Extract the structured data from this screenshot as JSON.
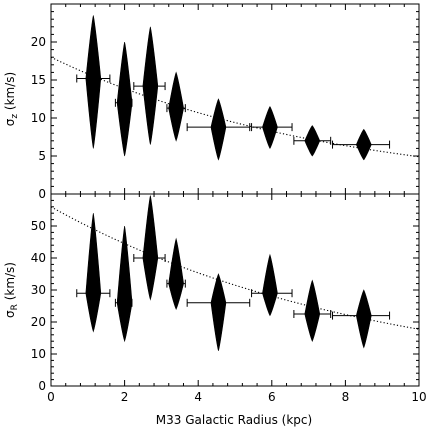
{
  "chart_data": [
    {
      "type": "scatter",
      "panel": "top",
      "ylabel_main": "σ",
      "ylabel_sub": "z",
      "ylabel_unit": " (km/s)",
      "xlim": [
        0,
        10
      ],
      "ylim": [
        0,
        25
      ],
      "yticks": [
        0,
        5,
        10,
        15,
        20
      ],
      "points": [
        {
          "x": 1.15,
          "y": 15.2,
          "xerr": [
            0.7,
            1.6
          ],
          "violin_lo": 6.0,
          "violin_hi": 23.5,
          "mode": 15.2
        },
        {
          "x": 2.0,
          "y": 12.0,
          "xerr": [
            1.75,
            2.2
          ],
          "violin_lo": 5.0,
          "violin_hi": 20.0,
          "mode": 12.0
        },
        {
          "x": 2.7,
          "y": 14.2,
          "xerr": [
            2.25,
            3.1
          ],
          "violin_lo": 6.5,
          "violin_hi": 22.0,
          "mode": 14.2
        },
        {
          "x": 3.4,
          "y": 11.3,
          "xerr": [
            3.15,
            3.65
          ],
          "violin_lo": 7.0,
          "violin_hi": 16.0,
          "mode": 11.3
        },
        {
          "x": 4.55,
          "y": 8.8,
          "xerr": [
            3.7,
            5.4
          ],
          "violin_lo": 4.5,
          "violin_hi": 12.5,
          "mode": 8.8
        },
        {
          "x": 5.95,
          "y": 8.8,
          "xerr": [
            5.45,
            6.55
          ],
          "violin_lo": 6.0,
          "violin_hi": 11.5,
          "mode": 8.8
        },
        {
          "x": 7.1,
          "y": 7.0,
          "xerr": [
            6.6,
            7.6
          ],
          "violin_lo": 5.0,
          "violin_hi": 9.0,
          "mode": 7.0
        },
        {
          "x": 8.5,
          "y": 6.5,
          "xerr": [
            7.65,
            9.2
          ],
          "violin_lo": 4.5,
          "violin_hi": 8.5,
          "mode": 6.5
        }
      ],
      "fit": {
        "style": "dotted",
        "a": 18.0,
        "b": 0.13
      }
    },
    {
      "type": "scatter",
      "panel": "bottom",
      "ylabel_main": "σ",
      "ylabel_sub": "R",
      "ylabel_unit": " (km/s)",
      "xlabel": "M33 Galactic Radius (kpc)",
      "xlim": [
        0,
        10
      ],
      "ylim": [
        0,
        60
      ],
      "yticks": [
        0,
        10,
        20,
        30,
        40,
        50
      ],
      "xticks": [
        0,
        2,
        4,
        6,
        8,
        10
      ],
      "points": [
        {
          "x": 1.15,
          "y": 29.0,
          "xerr": [
            0.7,
            1.6
          ],
          "violin_lo": 17.0,
          "violin_hi": 54.0,
          "mode": 29.0
        },
        {
          "x": 2.0,
          "y": 26.0,
          "xerr": [
            1.75,
            2.2
          ],
          "violin_lo": 14.0,
          "violin_hi": 50.0,
          "mode": 26.0
        },
        {
          "x": 2.7,
          "y": 40.0,
          "xerr": [
            2.25,
            3.1
          ],
          "violin_lo": 27.0,
          "violin_hi": 59.5,
          "mode": 40.0
        },
        {
          "x": 3.4,
          "y": 32.0,
          "xerr": [
            3.15,
            3.65
          ],
          "violin_lo": 24.0,
          "violin_hi": 46.0,
          "mode": 32.0
        },
        {
          "x": 4.55,
          "y": 26.0,
          "xerr": [
            3.7,
            5.4
          ],
          "violin_lo": 11.0,
          "violin_hi": 35.0,
          "mode": 26.0
        },
        {
          "x": 5.95,
          "y": 29.0,
          "xerr": [
            5.45,
            6.55
          ],
          "violin_lo": 22.0,
          "violin_hi": 41.0,
          "mode": 29.0
        },
        {
          "x": 7.1,
          "y": 22.5,
          "xerr": [
            6.6,
            7.6
          ],
          "violin_lo": 14.0,
          "violin_hi": 33.0,
          "mode": 22.5
        },
        {
          "x": 8.5,
          "y": 22.0,
          "xerr": [
            7.65,
            9.2
          ],
          "violin_lo": 12.0,
          "violin_hi": 30.0,
          "mode": 22.0
        }
      ],
      "fit": {
        "style": "dotted",
        "a": 56.0,
        "b": 0.115
      }
    }
  ]
}
